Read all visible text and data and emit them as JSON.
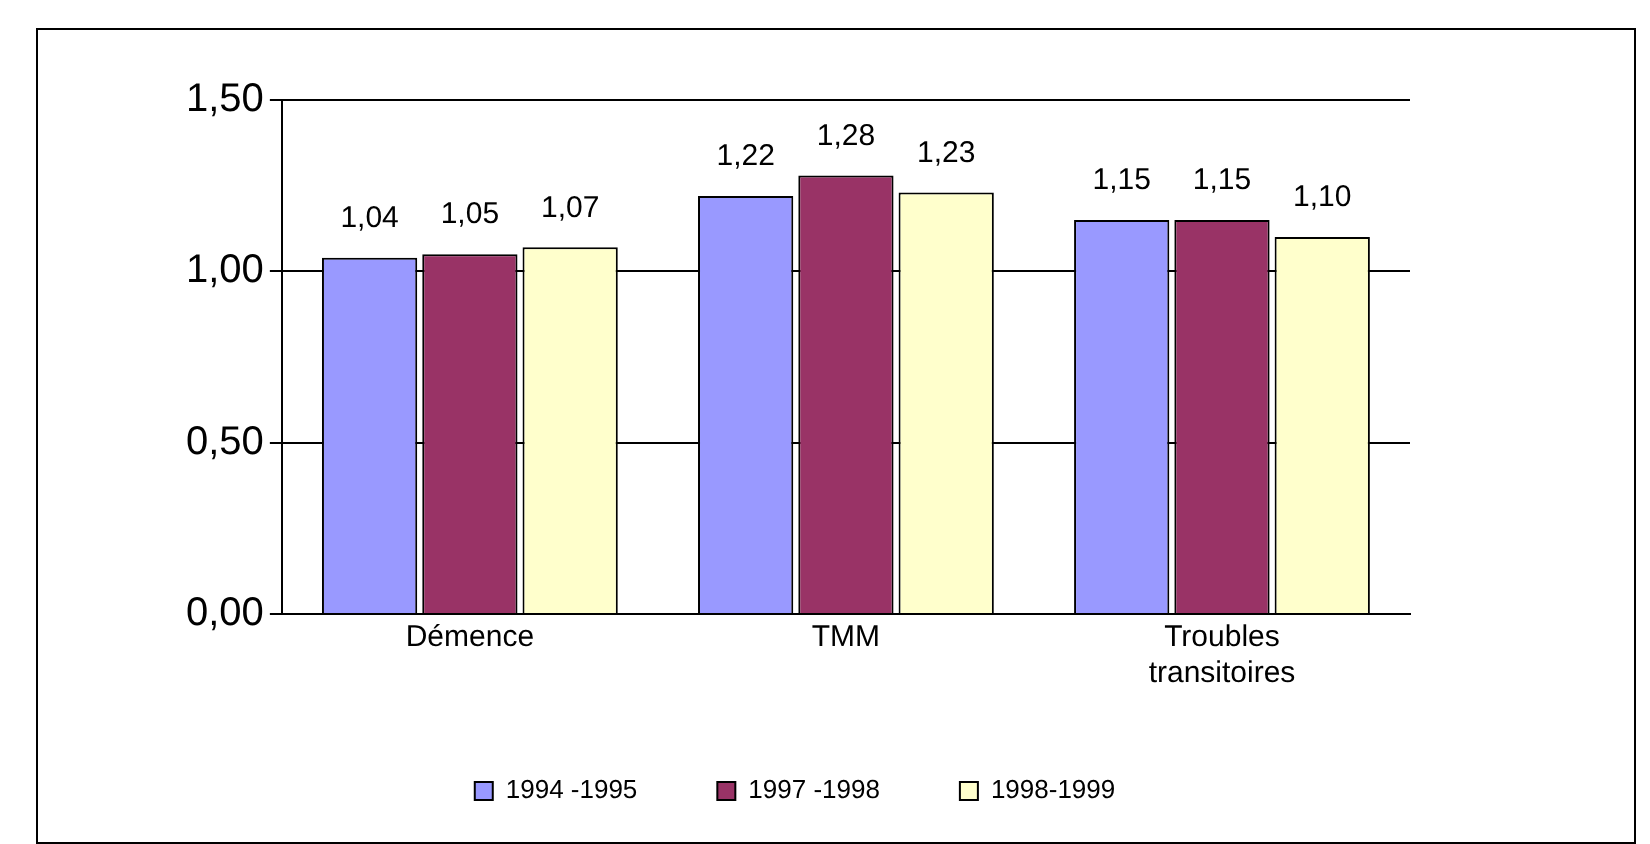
{
  "chart_data": {
    "type": "bar",
    "categories": [
      "Démence",
      "TMM",
      "Troubles transitoires"
    ],
    "series": [
      {
        "name": "1994 -1995",
        "color": "#9999ff",
        "values": [
          1.04,
          1.22,
          1.15
        ],
        "value_labels": [
          "1,04",
          "1,22",
          "1,15"
        ]
      },
      {
        "name": "1997 -1998",
        "color": "#993366",
        "values": [
          1.05,
          1.28,
          1.15
        ],
        "value_labels": [
          "1,05",
          "1,28",
          "1,15"
        ]
      },
      {
        "name": "1998-1999",
        "color": "#ffffcc",
        "values": [
          1.07,
          1.23,
          1.1
        ],
        "value_labels": [
          "1,07",
          "1,23",
          "1,10"
        ]
      }
    ],
    "ylim": [
      0,
      1.5
    ],
    "yticks": [
      {
        "value": 0,
        "label": "0,00"
      },
      {
        "value": 0.5,
        "label": "0,50"
      },
      {
        "value": 1,
        "label": "1,00"
      },
      {
        "value": 1.5,
        "label": "1,50"
      }
    ],
    "grid": "y",
    "legend": "bottom"
  }
}
